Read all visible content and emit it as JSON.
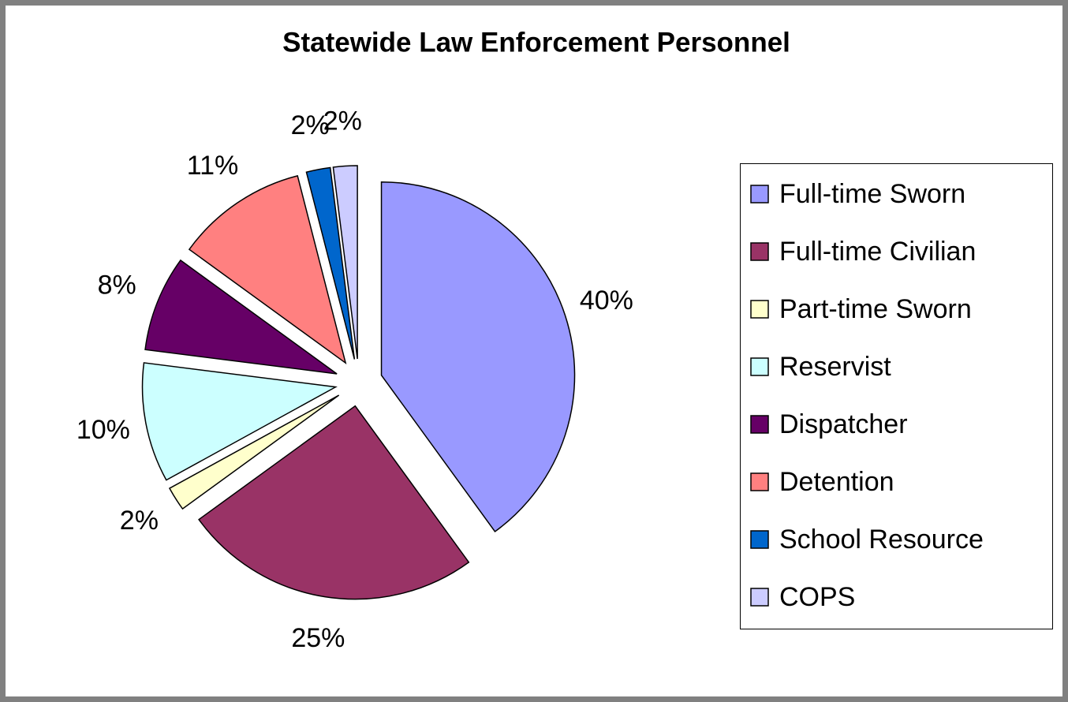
{
  "chart_data": {
    "type": "pie",
    "title": "Statewide Law Enforcement Personnel",
    "categories": [
      "Full-time Sworn",
      "Full-time Civilian",
      "Part-time Sworn",
      "Reservist",
      "Dispatcher",
      "Detention",
      "School Resource",
      "COPS"
    ],
    "values": [
      40,
      25,
      2,
      10,
      8,
      11,
      2,
      2
    ],
    "value_labels": [
      "40%",
      "25%",
      "2%",
      "10%",
      "8%",
      "11%",
      "2%",
      "2%"
    ],
    "colors": [
      "#9999ff",
      "#993366",
      "#ffffcc",
      "#ccffff",
      "#660066",
      "#ff8080",
      "#0066cc",
      "#ccccff"
    ],
    "legend": "right"
  }
}
